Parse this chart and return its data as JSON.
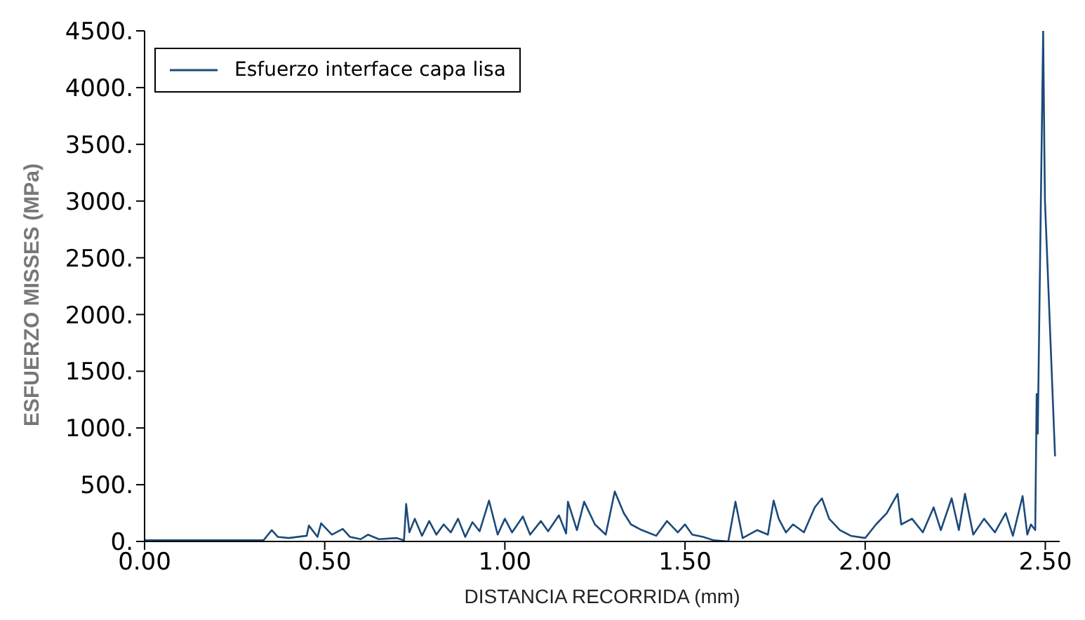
{
  "chart_data": {
    "type": "line",
    "xlabel": "DISTANCIA RECORRIDA (mm)",
    "ylabel": "ESFUERZO MISSES (MPa)",
    "xlim": [
      0,
      2.54
    ],
    "ylim": [
      0,
      4500
    ],
    "xticks": [
      {
        "value": 0,
        "label": "0.00"
      },
      {
        "value": 0.5,
        "label": "0.50"
      },
      {
        "value": 1,
        "label": "1.00"
      },
      {
        "value": 1.5,
        "label": "1.50"
      },
      {
        "value": 2,
        "label": "2.00"
      },
      {
        "value": 2.5,
        "label": "2.50"
      }
    ],
    "yticks": [
      {
        "value": 0,
        "label": "0."
      },
      {
        "value": 500,
        "label": "500."
      },
      {
        "value": 1000,
        "label": "1000."
      },
      {
        "value": 1500,
        "label": "1500."
      },
      {
        "value": 2000,
        "label": "2000."
      },
      {
        "value": 2500,
        "label": "2500."
      },
      {
        "value": 3000,
        "label": "3000."
      },
      {
        "value": 3500,
        "label": "3500."
      },
      {
        "value": 4000,
        "label": "4000."
      },
      {
        "value": 4500,
        "label": "4500."
      }
    ],
    "legend": "top left",
    "marker": "none",
    "line_style": "solid",
    "series": [
      {
        "name": "Esfuerzo interface capa lisa",
        "color": "#1b4a7a",
        "x": [
          0,
          0.25,
          0.3,
          0.33,
          0.353,
          0.37,
          0.4,
          0.45,
          0.456,
          0.48,
          0.49,
          0.52,
          0.55,
          0.57,
          0.6,
          0.62,
          0.65,
          0.7,
          0.72,
          0.726,
          0.735,
          0.75,
          0.77,
          0.79,
          0.81,
          0.83,
          0.85,
          0.87,
          0.89,
          0.91,
          0.93,
          0.956,
          0.98,
          1.0,
          1.02,
          1.05,
          1.07,
          1.1,
          1.12,
          1.15,
          1.17,
          1.175,
          1.2,
          1.22,
          1.25,
          1.28,
          1.305,
          1.33,
          1.35,
          1.38,
          1.42,
          1.45,
          1.48,
          1.5,
          1.52,
          1.55,
          1.58,
          1.62,
          1.64,
          1.66,
          1.7,
          1.73,
          1.746,
          1.76,
          1.78,
          1.8,
          1.83,
          1.86,
          1.88,
          1.9,
          1.93,
          1.96,
          2.0,
          2.03,
          2.06,
          2.09,
          2.1,
          2.13,
          2.16,
          2.19,
          2.21,
          2.24,
          2.26,
          2.277,
          2.3,
          2.33,
          2.36,
          2.39,
          2.41,
          2.437,
          2.45,
          2.46,
          2.472,
          2.476,
          2.479,
          2.494,
          2.498,
          2.499,
          2.527
        ],
        "values": [
          10,
          10,
          10,
          10,
          100,
          40,
          30,
          50,
          140,
          40,
          160,
          60,
          110,
          40,
          20,
          60,
          20,
          30,
          10,
          330,
          80,
          200,
          50,
          180,
          60,
          150,
          80,
          200,
          40,
          170,
          90,
          360,
          60,
          200,
          80,
          220,
          60,
          180,
          90,
          230,
          70,
          350,
          100,
          350,
          150,
          60,
          440,
          250,
          150,
          100,
          50,
          180,
          80,
          150,
          60,
          40,
          10,
          0,
          350,
          30,
          100,
          60,
          360,
          200,
          80,
          150,
          80,
          300,
          380,
          200,
          100,
          50,
          30,
          150,
          250,
          420,
          150,
          200,
          80,
          300,
          100,
          380,
          100,
          420,
          60,
          200,
          80,
          250,
          50,
          400,
          60,
          150,
          100,
          1300,
          950,
          4500,
          3250,
          3000,
          750
        ]
      }
    ]
  }
}
